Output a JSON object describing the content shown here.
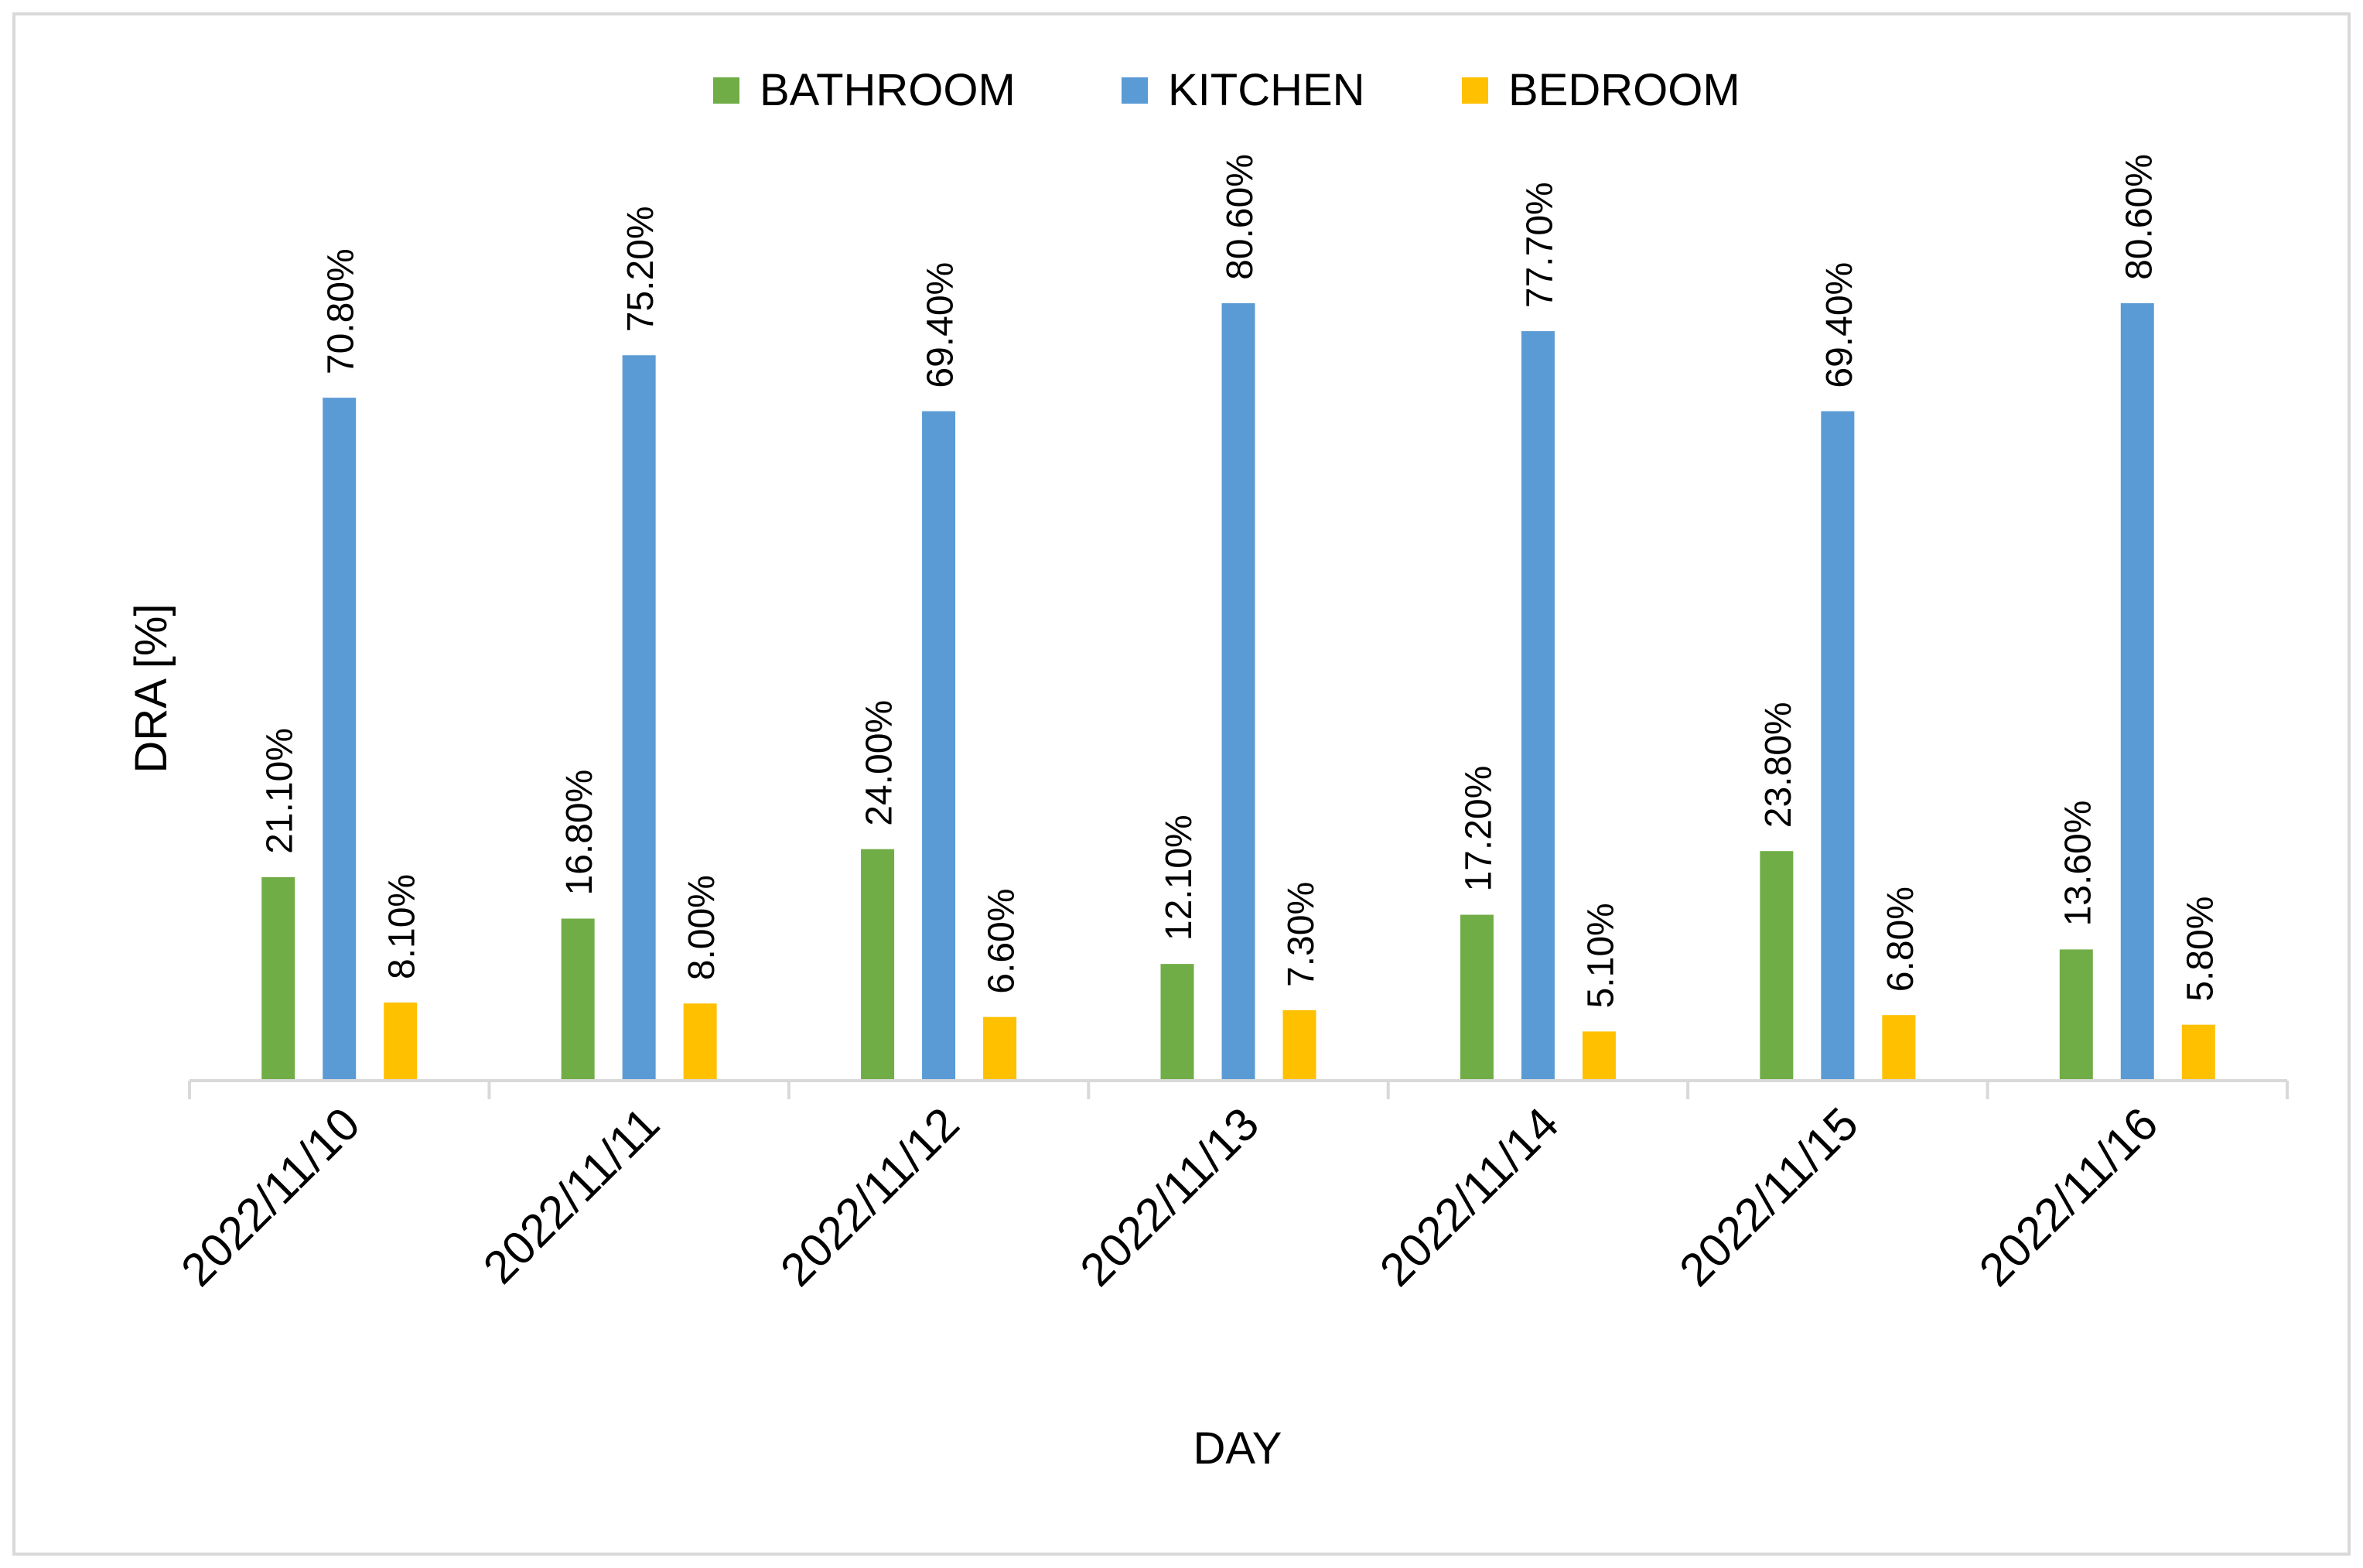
{
  "chart_data": {
    "type": "bar",
    "title": "",
    "xlabel": "DAY",
    "ylabel": "DRA [%]",
    "ylim": [
      0,
      100
    ],
    "grid": false,
    "legend_position": "top-center",
    "categories": [
      "2022/11/10",
      "2022/11/11",
      "2022/11/12",
      "2022/11/13",
      "2022/11/14",
      "2022/11/15",
      "2022/11/16"
    ],
    "series": [
      {
        "name": "BATHROOM",
        "color": "#70AD47",
        "values": [
          21.1,
          16.8,
          24.0,
          12.1,
          17.2,
          23.8,
          13.6
        ],
        "labels": [
          "21.10%",
          "16.80%",
          "24.00%",
          "12.10%",
          "17.20%",
          "23.80%",
          "13.60%"
        ]
      },
      {
        "name": "KITCHEN",
        "color": "#5B9BD5",
        "values": [
          70.8,
          75.2,
          69.4,
          80.6,
          77.7,
          69.4,
          80.6
        ],
        "labels": [
          "70.80%",
          "75.20%",
          "69.40%",
          "80.60%",
          "77.70%",
          "69.40%",
          "80.60%"
        ]
      },
      {
        "name": "BEDROOM",
        "color": "#FFC000",
        "values": [
          8.1,
          8.0,
          6.6,
          7.3,
          5.1,
          6.8,
          5.8
        ],
        "labels": [
          "8.10%",
          "8.00%",
          "6.60%",
          "7.30%",
          "5.10%",
          "6.80%",
          "5.80%"
        ]
      }
    ]
  }
}
